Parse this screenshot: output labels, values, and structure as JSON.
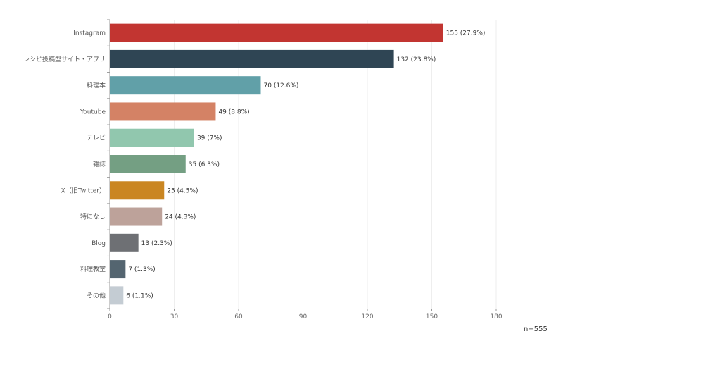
{
  "chart_data": {
    "type": "bar",
    "orientation": "horizontal",
    "categories": [
      "Instagram",
      "レシピ投稿型サイト・アプリ",
      "料理本",
      "Youtube",
      "テレビ",
      "雑誌",
      "X（旧Twitter）",
      "特になし",
      "Blog",
      "料理教室",
      "その他"
    ],
    "values": [
      155,
      132,
      70,
      49,
      39,
      35,
      25,
      24,
      13,
      7,
      6
    ],
    "data_labels": [
      "155 (27.9%)",
      "132 (23.8%)",
      "70 (12.6%)",
      "49 (8.8%)",
      "39 (7%)",
      "35 (6.3%)",
      "25 (4.5%)",
      "24 (4.3%)",
      "13 (2.3%)",
      "7 (1.3%)",
      "6 (1.1%)"
    ],
    "colors": [
      "#c23531",
      "#2f4554",
      "#61a0a8",
      "#d48265",
      "#91c7ae",
      "#749f83",
      "#ca8622",
      "#bda29a",
      "#6e7074",
      "#546570",
      "#c4ccd3"
    ],
    "xlim": [
      0,
      180
    ],
    "xticks": [
      "0",
      "30",
      "60",
      "90",
      "120",
      "150",
      "180"
    ],
    "grid": true,
    "title": "",
    "xlabel": "",
    "ylabel": ""
  },
  "note": "n=555"
}
